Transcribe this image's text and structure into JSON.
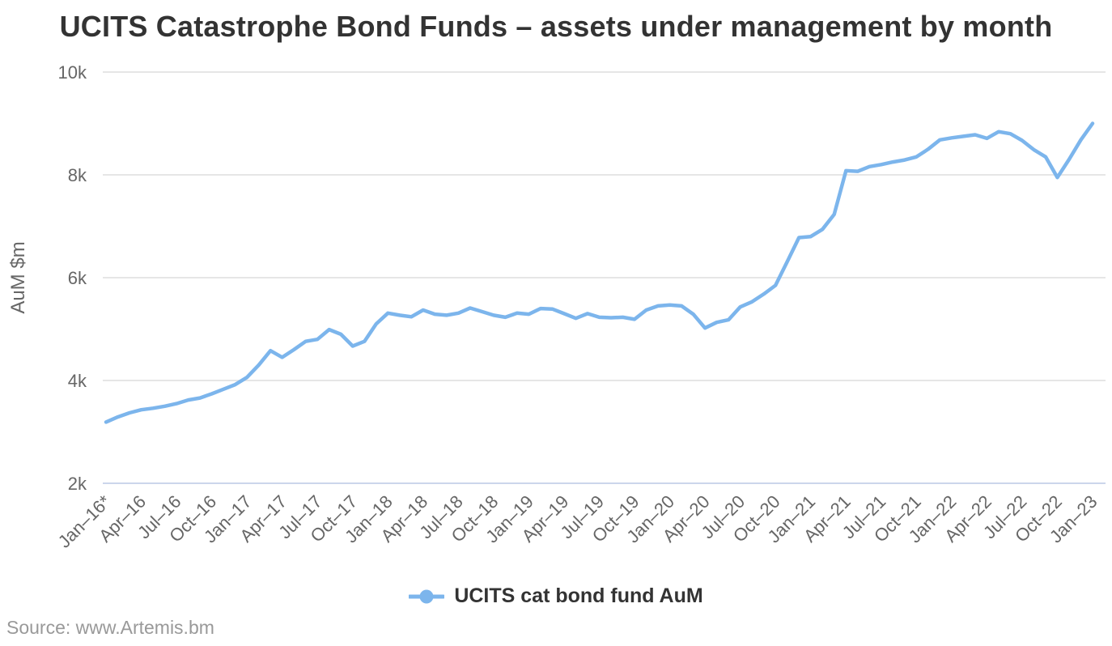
{
  "source_text": "Source: www.Artemis.bm",
  "colors": {
    "series": "#7cb5ec",
    "grid": "#e6e6e6",
    "axis_line": "#ccd6eb",
    "title_text": "#333333",
    "axis_text": "#666666",
    "source_text": "#999999"
  },
  "legend": {
    "label": "UCITS cat bond fund AuM"
  },
  "chart_data": {
    "type": "line",
    "title": "UCITS Catastrophe Bond Funds – assets under management by month",
    "xlabel": "",
    "ylabel": "AuM $m",
    "ylim": [
      2000,
      10000
    ],
    "ytick_values": [
      2000,
      4000,
      6000,
      8000,
      10000
    ],
    "ytick_labels": [
      "2k",
      "4k",
      "6k",
      "8k",
      "10k"
    ],
    "xtick_every": 3,
    "xtick_labels": [
      "Jan–16*",
      "Apr–16",
      "Jul–16",
      "Oct–16",
      "Jan–17",
      "Apr–17",
      "Jul–17",
      "Oct–17",
      "Jan–18",
      "Apr–18",
      "Jul–18",
      "Oct–18",
      "Jan–19",
      "Apr–19",
      "Jul–19",
      "Oct–19",
      "Jan–20",
      "Apr–20",
      "Jul–20",
      "Oct–20",
      "Jan–21",
      "Apr–21",
      "Jul–21",
      "Oct–21",
      "Jan–22",
      "Apr–22",
      "Jul–22",
      "Oct–22",
      "Jan–23"
    ],
    "grid": "horizontal",
    "legend_position": "bottom-center",
    "categories": [
      "Jan-16",
      "Feb-16",
      "Mar-16",
      "Apr-16",
      "May-16",
      "Jun-16",
      "Jul-16",
      "Aug-16",
      "Sep-16",
      "Oct-16",
      "Nov-16",
      "Dec-16",
      "Jan-17",
      "Feb-17",
      "Mar-17",
      "Apr-17",
      "May-17",
      "Jun-17",
      "Jul-17",
      "Aug-17",
      "Sep-17",
      "Oct-17",
      "Nov-17",
      "Dec-17",
      "Jan-18",
      "Feb-18",
      "Mar-18",
      "Apr-18",
      "May-18",
      "Jun-18",
      "Jul-18",
      "Aug-18",
      "Sep-18",
      "Oct-18",
      "Nov-18",
      "Dec-18",
      "Jan-19",
      "Feb-19",
      "Mar-19",
      "Apr-19",
      "May-19",
      "Jun-19",
      "Jul-19",
      "Aug-19",
      "Sep-19",
      "Oct-19",
      "Nov-19",
      "Dec-19",
      "Jan-20",
      "Feb-20",
      "Mar-20",
      "Apr-20",
      "May-20",
      "Jun-20",
      "Jul-20",
      "Aug-20",
      "Sep-20",
      "Oct-20",
      "Nov-20",
      "Dec-20",
      "Jan-21",
      "Feb-21",
      "Mar-21",
      "Apr-21",
      "May-21",
      "Jun-21",
      "Jul-21",
      "Aug-21",
      "Sep-21",
      "Oct-21",
      "Nov-21",
      "Dec-21",
      "Jan-22",
      "Feb-22",
      "Mar-22",
      "Apr-22",
      "May-22",
      "Jun-22",
      "Jul-22",
      "Aug-22",
      "Sep-22",
      "Oct-22",
      "Nov-22",
      "Dec-22",
      "Jan-23"
    ],
    "series": [
      {
        "name": "UCITS cat bond fund AuM",
        "color": "#7cb5ec",
        "values": [
          3190,
          3290,
          3370,
          3430,
          3460,
          3500,
          3550,
          3620,
          3660,
          3740,
          3830,
          3920,
          4060,
          4300,
          4580,
          4450,
          4600,
          4760,
          4800,
          4990,
          4900,
          4670,
          4760,
          5100,
          5310,
          5270,
          5240,
          5370,
          5290,
          5270,
          5310,
          5410,
          5340,
          5270,
          5230,
          5310,
          5290,
          5400,
          5390,
          5300,
          5210,
          5300,
          5230,
          5220,
          5230,
          5190,
          5370,
          5450,
          5470,
          5450,
          5290,
          5020,
          5130,
          5180,
          5430,
          5530,
          5680,
          5850,
          6310,
          6780,
          6800,
          6940,
          7230,
          8080,
          8070,
          8160,
          8200,
          8250,
          8290,
          8350,
          8500,
          8680,
          8720,
          8750,
          8780,
          8710,
          8840,
          8800,
          8670,
          8490,
          8350,
          7950,
          8300,
          8680,
          9000
        ]
      }
    ]
  }
}
